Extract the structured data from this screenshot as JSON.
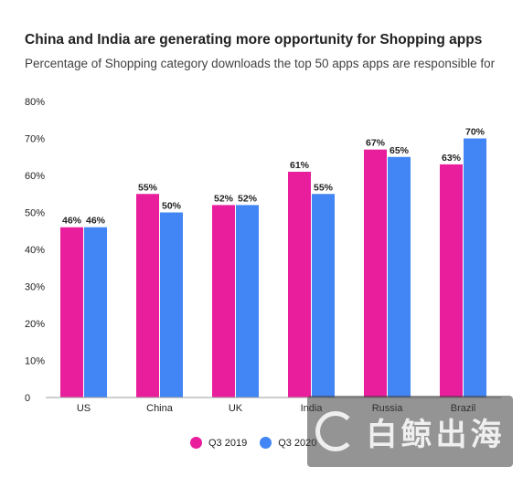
{
  "title": "China and India are generating more opportunity for Shopping apps",
  "subtitle": "Percentage of Shopping category downloads the top 50 apps apps are responsible for",
  "colors": {
    "q3_2019": "#e91e9c",
    "q3_2020": "#4285f4"
  },
  "chart_data": {
    "type": "bar",
    "categories": [
      "US",
      "China",
      "UK",
      "India",
      "Russia",
      "Brazil"
    ],
    "series": [
      {
        "name": "Q3 2019",
        "values": [
          46,
          55,
          52,
          61,
          67,
          63
        ]
      },
      {
        "name": "Q3 2020",
        "values": [
          46,
          50,
          52,
          55,
          65,
          70
        ]
      }
    ],
    "data_labels": [
      [
        "46%",
        "55%",
        "52%",
        "61%",
        "67%",
        "63%"
      ],
      [
        "46%",
        "50%",
        "52%",
        "55%",
        "65%",
        "70%"
      ]
    ],
    "yticks": [
      "0",
      "10%",
      "20%",
      "30%",
      "40%",
      "50%",
      "60%",
      "70%",
      "80%"
    ],
    "ylim": [
      0,
      80
    ],
    "grid": false,
    "legend_position": "bottom"
  },
  "legend": {
    "q3_2019": "Q3 2019",
    "q3_2020": "Q3 2020"
  },
  "watermark": {
    "text": "白鲸出海"
  }
}
